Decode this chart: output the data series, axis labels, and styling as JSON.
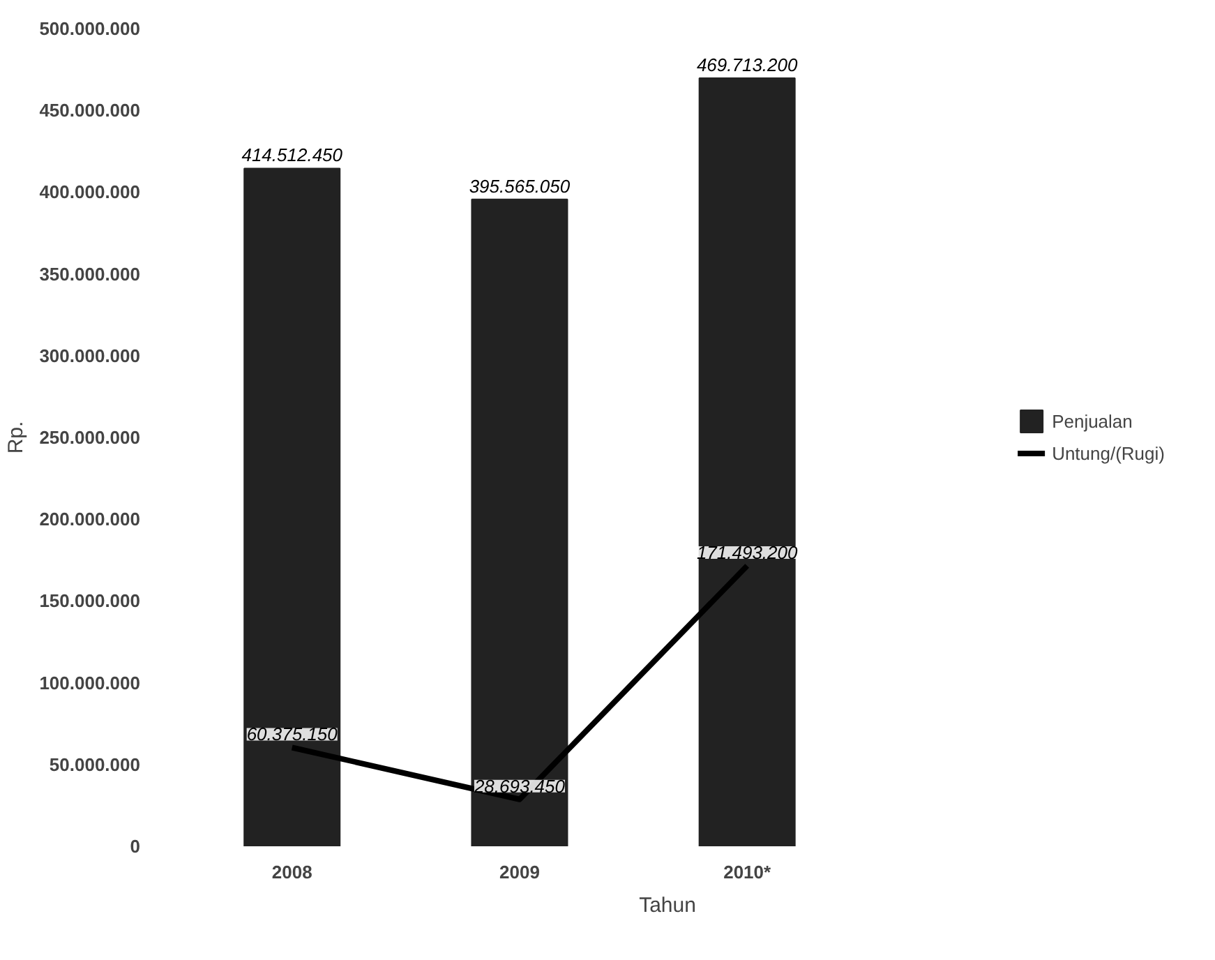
{
  "chart_data": {
    "type": "bar",
    "xlabel": "Tahun",
    "ylabel": "Rp.",
    "categories": [
      "2008",
      "2009",
      "2010*"
    ],
    "series": [
      {
        "name": "Penjualan",
        "color": "#222222",
        "values": [
          414512450,
          395565050,
          469713200
        ],
        "value_labels": [
          "414.512.450",
          "395.565.050",
          "469.713.200"
        ]
      },
      {
        "name": "Untung/(Rugi)",
        "type": "line",
        "color": "#000000",
        "values": [
          60375150,
          28693450,
          171493200
        ],
        "value_labels": [
          "60.375.150",
          "28.693.450",
          "171.493.200"
        ]
      }
    ],
    "ylim": [
      0,
      500000000
    ],
    "yticks": [
      {
        "value": 0,
        "label": "0"
      },
      {
        "value": 50000000,
        "label": "50.000.000"
      },
      {
        "value": 100000000,
        "label": "100.000.000"
      },
      {
        "value": 150000000,
        "label": "150.000.000"
      },
      {
        "value": 200000000,
        "label": "200.000.000"
      },
      {
        "value": 250000000,
        "label": "250.000.000"
      },
      {
        "value": 300000000,
        "label": "300.000.000"
      },
      {
        "value": 350000000,
        "label": "350.000.000"
      },
      {
        "value": 400000000,
        "label": "400.000.000"
      },
      {
        "value": 450000000,
        "label": "450.000.000"
      },
      {
        "value": 500000000,
        "label": "500.000.000"
      }
    ],
    "grid": false,
    "legend": "right",
    "marker": "none",
    "line_style": "solid"
  }
}
